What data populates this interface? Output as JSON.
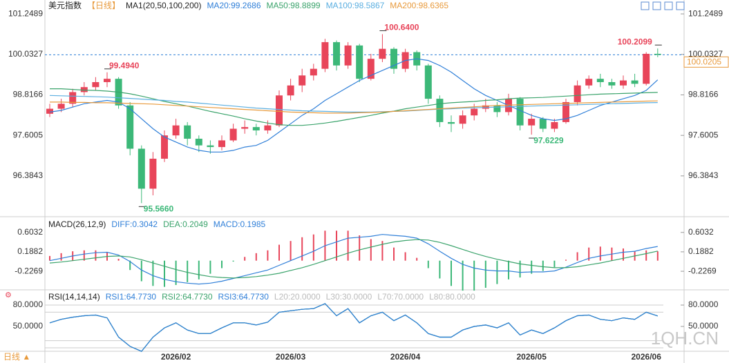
{
  "ui": {
    "period_tab": "日线 ▲",
    "watermark": "1QH.CN"
  },
  "chart_data": [
    {
      "type": "candlestick",
      "title": "美元指数",
      "period": "【日线】",
      "indicator": "MA1(20,50,100,200)",
      "categories": [
        null,
        null,
        null,
        null,
        null,
        null,
        null,
        null,
        null,
        null,
        null,
        "2026/02",
        null,
        null,
        null,
        null,
        null,
        null,
        null,
        null,
        null,
        "2026/03",
        null,
        null,
        null,
        null,
        null,
        null,
        null,
        null,
        null,
        "2026/04",
        null,
        null,
        null,
        null,
        null,
        null,
        null,
        null,
        null,
        null,
        "2026/05",
        null,
        null,
        null,
        null,
        null,
        null,
        null,
        null,
        null,
        "2026/06",
        null
      ],
      "open": [
        98.25,
        98.4,
        98.55,
        98.9,
        99.05,
        99.2,
        99.3,
        98.5,
        97.2,
        96,
        96.9,
        97.6,
        97.9,
        97.5,
        97.3,
        97.25,
        97.45,
        97.8,
        97.85,
        97.75,
        97.9,
        98.8,
        99.1,
        99.4,
        99.6,
        100.4,
        99.7,
        100.3,
        99.3,
        99.9,
        100.2,
        99.6,
        100.1,
        99.7,
        98.7,
        98,
        97.95,
        98.2,
        98.4,
        98.5,
        98.3,
        98.7,
        97.9,
        98.1,
        97.8,
        98,
        98.6,
        99.1,
        99.3,
        99.2,
        99.1,
        99.25,
        99.15,
        100.05
      ],
      "high": [
        98.55,
        98.7,
        99,
        99.2,
        99.35,
        99.494,
        99.35,
        98.6,
        97.3,
        97.1,
        97.75,
        98.1,
        98,
        97.6,
        97.45,
        97.6,
        97.95,
        98.05,
        97.95,
        98.05,
        98.95,
        99.3,
        99.6,
        99.75,
        100.5,
        100.45,
        100.4,
        100.35,
        100.05,
        100.64,
        100.25,
        100.2,
        100.15,
        99.75,
        98.8,
        98.2,
        98.35,
        98.55,
        98.7,
        98.6,
        98.85,
        98.75,
        98.25,
        98.15,
        98.1,
        98.7,
        99.25,
        99.4,
        99.45,
        99.3,
        99.4,
        99.45,
        100.1,
        100.2099
      ],
      "low": [
        98.15,
        98.3,
        98.45,
        98.8,
        98.95,
        99.05,
        98.4,
        97,
        95.566,
        95.8,
        96.8,
        97.5,
        97.3,
        97.1,
        97.05,
        97.15,
        97.4,
        97.65,
        97.6,
        97.65,
        97.85,
        98.65,
        98.9,
        99.25,
        99.5,
        99.55,
        99.6,
        99.2,
        99.25,
        99.8,
        99.45,
        99.5,
        99.55,
        98.55,
        97.85,
        97.7,
        97.8,
        98.05,
        98.3,
        98.15,
        98.2,
        97.75,
        97.6229,
        97.7,
        97.7,
        97.95,
        98.5,
        99,
        99.05,
        99,
        99,
        99.05,
        99.1,
        99.95
      ],
      "close": [
        98.4,
        98.55,
        98.9,
        99.05,
        99.2,
        99.3,
        98.5,
        97.2,
        96,
        96.9,
        97.6,
        97.9,
        97.5,
        97.3,
        97.25,
        97.45,
        97.8,
        97.85,
        97.75,
        97.9,
        98.8,
        99.1,
        99.4,
        99.6,
        100.4,
        99.7,
        100.3,
        99.3,
        99.9,
        100.2,
        99.6,
        100.1,
        99.7,
        98.7,
        98,
        97.95,
        98.2,
        98.4,
        98.5,
        98.3,
        98.7,
        97.9,
        98.1,
        97.8,
        98,
        98.6,
        99.1,
        99.3,
        99.2,
        99.1,
        99.25,
        99.15,
        100.05,
        100.0205
      ],
      "up_color": "#e8455a",
      "down_color": "#3cb878",
      "series": [
        {
          "name": "MA20:99.2686",
          "color": "#2f7fd8",
          "values": [
            98.3,
            98.35,
            98.45,
            98.55,
            98.6,
            98.65,
            98.6,
            98.4,
            98.1,
            97.8,
            97.55,
            97.4,
            97.25,
            97.15,
            97.1,
            97.1,
            97.15,
            97.25,
            97.3,
            97.45,
            97.7,
            97.95,
            98.2,
            98.4,
            98.65,
            98.85,
            99.05,
            99.25,
            99.4,
            99.55,
            99.7,
            99.85,
            99.9,
            99.85,
            99.7,
            99.5,
            99.25,
            99,
            98.8,
            98.65,
            98.5,
            98.35,
            98.2,
            98.1,
            98.05,
            98.1,
            98.2,
            98.35,
            98.5,
            98.6,
            98.7,
            98.8,
            98.95,
            99.2686
          ]
        },
        {
          "name": "MA50:98.8899",
          "color": "#3aa36b",
          "values": [
            99,
            99,
            98.98,
            98.96,
            98.95,
            98.93,
            98.9,
            98.85,
            98.78,
            98.7,
            98.62,
            98.55,
            98.48,
            98.4,
            98.32,
            98.25,
            98.18,
            98.1,
            98.03,
            97.97,
            97.92,
            97.9,
            97.9,
            97.93,
            97.97,
            98.02,
            98.08,
            98.14,
            98.2,
            98.27,
            98.33,
            98.4,
            98.45,
            98.5,
            98.55,
            98.58,
            98.6,
            98.62,
            98.65,
            98.67,
            98.7,
            98.72,
            98.73,
            98.74,
            98.76,
            98.78,
            98.8,
            98.82,
            98.84,
            98.85,
            98.86,
            98.87,
            98.88,
            98.8899
          ]
        },
        {
          "name": "MA100:98.5867",
          "color": "#5aaee0",
          "values": [
            98.8,
            98.79,
            98.78,
            98.77,
            98.76,
            98.75,
            98.73,
            98.71,
            98.69,
            98.67,
            98.65,
            98.62,
            98.6,
            98.57,
            98.54,
            98.51,
            98.48,
            98.45,
            98.42,
            98.4,
            98.38,
            98.36,
            98.34,
            98.33,
            98.32,
            98.31,
            98.3,
            98.3,
            98.3,
            98.31,
            98.32,
            98.33,
            98.35,
            98.37,
            98.39,
            98.4,
            98.42,
            98.43,
            98.44,
            98.45,
            98.46,
            98.47,
            98.48,
            98.49,
            98.5,
            98.51,
            98.52,
            98.53,
            98.54,
            98.55,
            98.56,
            98.57,
            98.58,
            98.5867
          ]
        },
        {
          "name": "MA200:98.6365",
          "color": "#e89a3c",
          "values": [
            98.6,
            98.6,
            98.59,
            98.59,
            98.58,
            98.58,
            98.57,
            98.56,
            98.55,
            98.54,
            98.52,
            98.5,
            98.48,
            98.46,
            98.44,
            98.42,
            98.4,
            98.38,
            98.36,
            98.34,
            98.32,
            98.3,
            98.29,
            98.28,
            98.27,
            98.27,
            98.27,
            98.28,
            98.29,
            98.3,
            98.32,
            98.34,
            98.36,
            98.38,
            98.4,
            98.42,
            98.44,
            98.46,
            98.48,
            98.5,
            98.51,
            98.52,
            98.53,
            98.54,
            98.55,
            98.56,
            98.57,
            98.58,
            98.59,
            98.6,
            98.61,
            98.62,
            98.63,
            98.6365
          ]
        }
      ],
      "ylim": [
        95.2,
        101.5
      ],
      "yticks": [
        101.2489,
        100.0327,
        98.8166,
        97.6005,
        96.3843
      ],
      "annotations": [
        {
          "label": "99.4940",
          "value": 99.494
        },
        {
          "label": "95.5660",
          "value": 95.566
        },
        {
          "label": "100.6400",
          "value": 100.64
        },
        {
          "label": "97.6229",
          "value": 97.6229
        },
        {
          "label": "100.2099",
          "value": 100.2099
        }
      ],
      "last_price": 100.0205
    },
    {
      "type": "macd",
      "title": "MACD(26,12,9)",
      "series": [
        {
          "name": "DIFF:0.3042",
          "color": "#2f7fd8",
          "values": [
            0,
            0.05,
            0.1,
            0.14,
            0.17,
            0.18,
            0.12,
            -0.02,
            -0.2,
            -0.32,
            -0.4,
            -0.45,
            -0.48,
            -0.5,
            -0.48,
            -0.44,
            -0.38,
            -0.32,
            -0.26,
            -0.2,
            -0.1,
            0,
            0.1,
            0.2,
            0.32,
            0.4,
            0.48,
            0.5,
            0.52,
            0.56,
            0.54,
            0.52,
            0.48,
            0.36,
            0.2,
            0.05,
            -0.08,
            -0.16,
            -0.2,
            -0.22,
            -0.22,
            -0.25,
            -0.24,
            -0.24,
            -0.22,
            -0.14,
            -0.04,
            0.05,
            0.1,
            0.14,
            0.18,
            0.2,
            0.26,
            0.3042
          ]
        },
        {
          "name": "DEA:0.2049",
          "color": "#3aa36b",
          "values": [
            -0.05,
            -0.03,
            0,
            0.03,
            0.06,
            0.09,
            0.1,
            0.08,
            0.02,
            -0.05,
            -0.12,
            -0.19,
            -0.25,
            -0.3,
            -0.34,
            -0.36,
            -0.37,
            -0.36,
            -0.34,
            -0.31,
            -0.27,
            -0.21,
            -0.15,
            -0.08,
            0,
            0.08,
            0.16,
            0.23,
            0.29,
            0.35,
            0.4,
            0.43,
            0.45,
            0.44,
            0.39,
            0.32,
            0.24,
            0.16,
            0.09,
            0.03,
            -0.02,
            -0.07,
            -0.1,
            -0.13,
            -0.15,
            -0.15,
            -0.13,
            -0.09,
            -0.05,
            0,
            0.05,
            0.1,
            0.15,
            0.2049
          ]
        }
      ],
      "histogram": {
        "name": "MACD:0.1985",
        "up_color": "#e8455a",
        "down_color": "#3cb878",
        "values": [
          0.1,
          0.16,
          0.2,
          0.22,
          0.22,
          0.18,
          0.04,
          -0.2,
          -0.44,
          -0.54,
          -0.56,
          -0.52,
          -0.46,
          -0.4,
          -0.28,
          -0.16,
          -0.02,
          0.08,
          0.16,
          0.22,
          0.34,
          0.42,
          0.5,
          0.56,
          0.64,
          0.64,
          0.64,
          0.54,
          0.46,
          0.42,
          0.28,
          0.18,
          0.06,
          -0.16,
          -0.38,
          -0.54,
          -0.64,
          -0.64,
          -0.58,
          -0.5,
          -0.4,
          -0.36,
          -0.28,
          -0.22,
          -0.14,
          0.02,
          0.18,
          0.28,
          0.3,
          0.28,
          0.26,
          0.2,
          0.22,
          0.1985
        ]
      },
      "ylim": [
        -0.55,
        0.88
      ],
      "yticks": [
        0.6032,
        0.1882,
        -0.2269
      ]
    },
    {
      "type": "rsi",
      "title": "RSI(14,14,14)",
      "series": [
        {
          "name": "RSI1:64.7730",
          "color": "#2f7fd8",
          "values": [
            55,
            60,
            63,
            65,
            66,
            62,
            35,
            22,
            15,
            35,
            48,
            55,
            45,
            40,
            40,
            48,
            55,
            55,
            52,
            56,
            70,
            72,
            74,
            75,
            82,
            65,
            75,
            55,
            65,
            70,
            58,
            66,
            55,
            40,
            35,
            35,
            45,
            50,
            52,
            48,
            55,
            38,
            45,
            40,
            48,
            58,
            65,
            66,
            60,
            58,
            62,
            60,
            70,
            64.773
          ]
        },
        {
          "name": "RSI2:64.7730",
          "color": "#3aa36b",
          "values": [
            55,
            60,
            63,
            65,
            66,
            62,
            35,
            22,
            15,
            35,
            48,
            55,
            45,
            40,
            40,
            48,
            55,
            55,
            52,
            56,
            70,
            72,
            74,
            75,
            82,
            65,
            75,
            55,
            65,
            70,
            58,
            66,
            55,
            40,
            35,
            35,
            45,
            50,
            52,
            48,
            55,
            38,
            45,
            40,
            48,
            58,
            65,
            66,
            60,
            58,
            62,
            60,
            70,
            64.773
          ]
        },
        {
          "name": "RSI3:64.7730",
          "color": "#2f7fd8",
          "values": [
            55,
            60,
            63,
            65,
            66,
            62,
            35,
            22,
            15,
            35,
            48,
            55,
            45,
            40,
            40,
            48,
            55,
            55,
            52,
            56,
            70,
            72,
            74,
            75,
            82,
            65,
            75,
            55,
            65,
            70,
            58,
            66,
            55,
            40,
            35,
            35,
            45,
            50,
            52,
            48,
            55,
            38,
            45,
            40,
            48,
            58,
            65,
            66,
            60,
            58,
            62,
            60,
            70,
            64.773
          ]
        }
      ],
      "levels": [
        {
          "name": "L20:20.0000",
          "value": 20
        },
        {
          "name": "L30:30.0000",
          "value": 30
        },
        {
          "name": "L70:70.0000",
          "value": 70
        },
        {
          "name": "L80:80.0000",
          "value": 80
        }
      ],
      "ylim": [
        19,
        96.5
      ],
      "yticks": [
        {
          "value": 80,
          "label": "80.0000"
        },
        {
          "value": 50,
          "label": "50.0000"
        }
      ]
    }
  ]
}
